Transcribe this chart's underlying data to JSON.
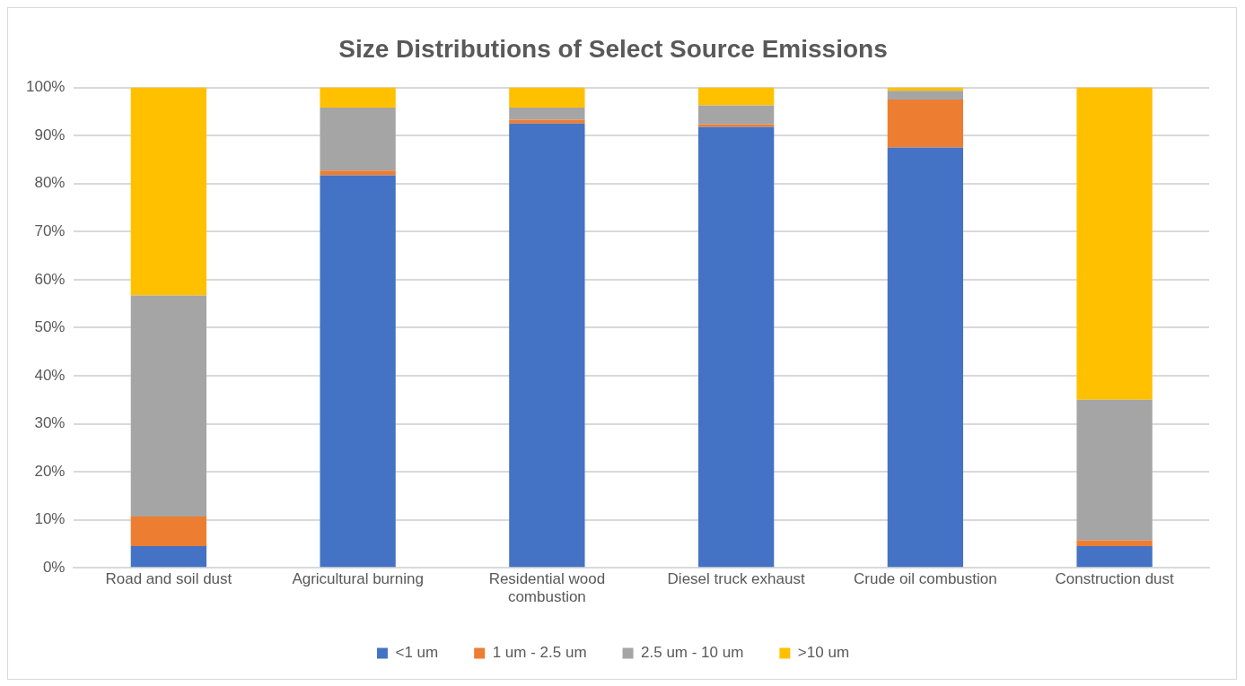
{
  "chart_data": {
    "type": "bar",
    "title": "Size Distributions of Select Source Emissions",
    "categories": [
      "Road and soil dust",
      "Agricultural burning",
      "Residential wood combustion",
      "Diesel truck exhaust",
      "Crude oil combustion",
      "Construction dust"
    ],
    "series": [
      {
        "name": "<1 um",
        "color": "#4472c4",
        "values": [
          4.5,
          81.7,
          92.5,
          91.8,
          87.5,
          4.5
        ]
      },
      {
        "name": "1 um - 2.5 um",
        "color": "#ed7d31",
        "values": [
          6.2,
          1.0,
          0.8,
          0.5,
          10.0,
          1.2
        ]
      },
      {
        "name": "2.5 um - 10 um",
        "color": "#a5a5a5",
        "values": [
          46.0,
          13.1,
          2.5,
          4.0,
          1.8,
          29.3
        ]
      },
      {
        "name": ">10 um",
        "color": "#ffc000",
        "values": [
          43.3,
          4.2,
          4.2,
          3.7,
          0.7,
          65.0
        ]
      }
    ],
    "stacked": true,
    "ylim": [
      0,
      100
    ],
    "yticks": [
      {
        "value": 0,
        "label": "0%"
      },
      {
        "value": 10,
        "label": "10%"
      },
      {
        "value": 20,
        "label": "20%"
      },
      {
        "value": 30,
        "label": "30%"
      },
      {
        "value": 40,
        "label": "40%"
      },
      {
        "value": 50,
        "label": "50%"
      },
      {
        "value": 60,
        "label": "60%"
      },
      {
        "value": 70,
        "label": "70%"
      },
      {
        "value": 80,
        "label": "80%"
      },
      {
        "value": 90,
        "label": "90%"
      },
      {
        "value": 100,
        "label": "100%"
      }
    ],
    "grid": "y",
    "legend": "bottom"
  }
}
